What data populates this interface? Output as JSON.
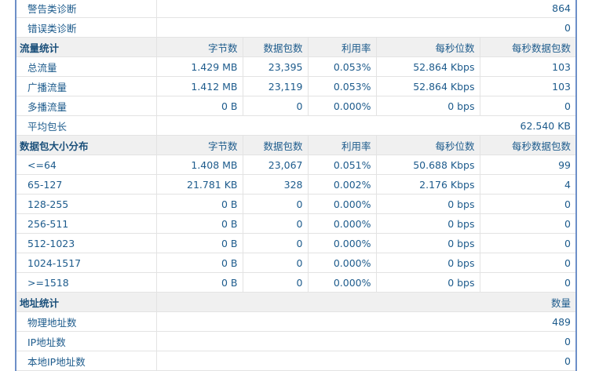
{
  "rows": [
    {
      "type": "span",
      "label": "警告类诊断",
      "value": "864"
    },
    {
      "type": "span",
      "label": "错误类诊断",
      "value": "0"
    },
    {
      "type": "hdr",
      "label": "流量统计",
      "cols": [
        "字节数",
        "数据包数",
        "利用率",
        "每秒位数",
        "每秒数据包数"
      ]
    },
    {
      "type": "data",
      "label": "总流量",
      "cols": [
        "1.429 MB",
        "23,395",
        "0.053%",
        "52.864 Kbps",
        "103"
      ]
    },
    {
      "type": "data",
      "label": "广播流量",
      "cols": [
        "1.412 MB",
        "23,119",
        "0.053%",
        "52.864 Kbps",
        "103"
      ]
    },
    {
      "type": "data",
      "label": "多播流量",
      "cols": [
        "0 B",
        "0",
        "0.000%",
        "0 bps",
        "0"
      ]
    },
    {
      "type": "span",
      "label": "平均包长",
      "value": "62.540 KB"
    },
    {
      "type": "hdr",
      "label": "数据包大小分布",
      "cols": [
        "字节数",
        "数据包数",
        "利用率",
        "每秒位数",
        "每秒数据包数"
      ]
    },
    {
      "type": "data",
      "label": "<=64",
      "cols": [
        "1.408 MB",
        "23,067",
        "0.051%",
        "50.688 Kbps",
        "99"
      ]
    },
    {
      "type": "data",
      "label": "65-127",
      "cols": [
        "21.781 KB",
        "328",
        "0.002%",
        "2.176 Kbps",
        "4"
      ]
    },
    {
      "type": "data",
      "label": "128-255",
      "cols": [
        "0 B",
        "0",
        "0.000%",
        "0 bps",
        "0"
      ]
    },
    {
      "type": "data",
      "label": "256-511",
      "cols": [
        "0 B",
        "0",
        "0.000%",
        "0 bps",
        "0"
      ]
    },
    {
      "type": "data",
      "label": "512-1023",
      "cols": [
        "0 B",
        "0",
        "0.000%",
        "0 bps",
        "0"
      ]
    },
    {
      "type": "data",
      "label": "1024-1517",
      "cols": [
        "0 B",
        "0",
        "0.000%",
        "0 bps",
        "0"
      ]
    },
    {
      "type": "data",
      "label": ">=1518",
      "cols": [
        "0 B",
        "0",
        "0.000%",
        "0 bps",
        "0"
      ]
    },
    {
      "type": "hdrspan",
      "label": "地址统计",
      "value": "数量"
    },
    {
      "type": "span",
      "label": "物理地址数",
      "value": "489"
    },
    {
      "type": "span",
      "label": "IP地址数",
      "value": "0"
    },
    {
      "type": "span",
      "label": "本地IP地址数",
      "value": "0"
    }
  ]
}
